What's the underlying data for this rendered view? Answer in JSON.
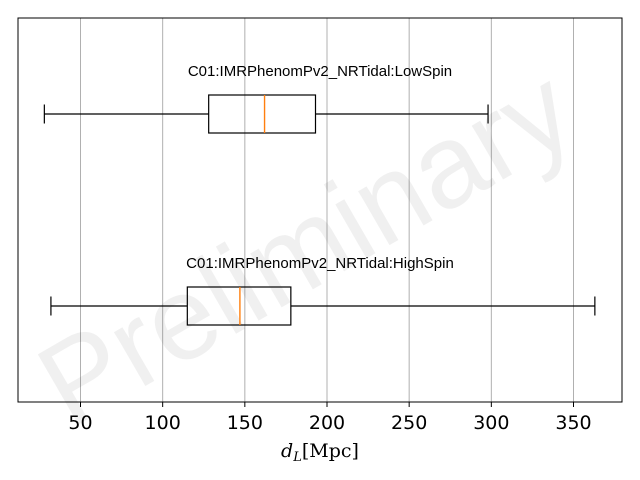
{
  "chart_data": {
    "type": "boxplot",
    "orientation": "horizontal",
    "xlabel": "d_L[Mpc]",
    "xlim": [
      15,
      380
    ],
    "xticks": [
      50,
      100,
      150,
      200,
      250,
      300,
      350
    ],
    "grid": "vertical",
    "series": [
      {
        "name": "C01:IMRPhenomPv2_NRTidal:LowSpin",
        "whisker_low": 28,
        "q1": 128,
        "median": 162,
        "q3": 193,
        "whisker_high": 298
      },
      {
        "name": "C01:IMRPhenomPv2_NRTidal:HighSpin",
        "whisker_low": 32,
        "q1": 115,
        "median": 147,
        "q3": 178,
        "whisker_high": 363
      }
    ],
    "colors": {
      "box": "#000000",
      "median": "#ff7f0e",
      "grid": "#b0b0b0"
    }
  },
  "watermark": "Preliminary"
}
